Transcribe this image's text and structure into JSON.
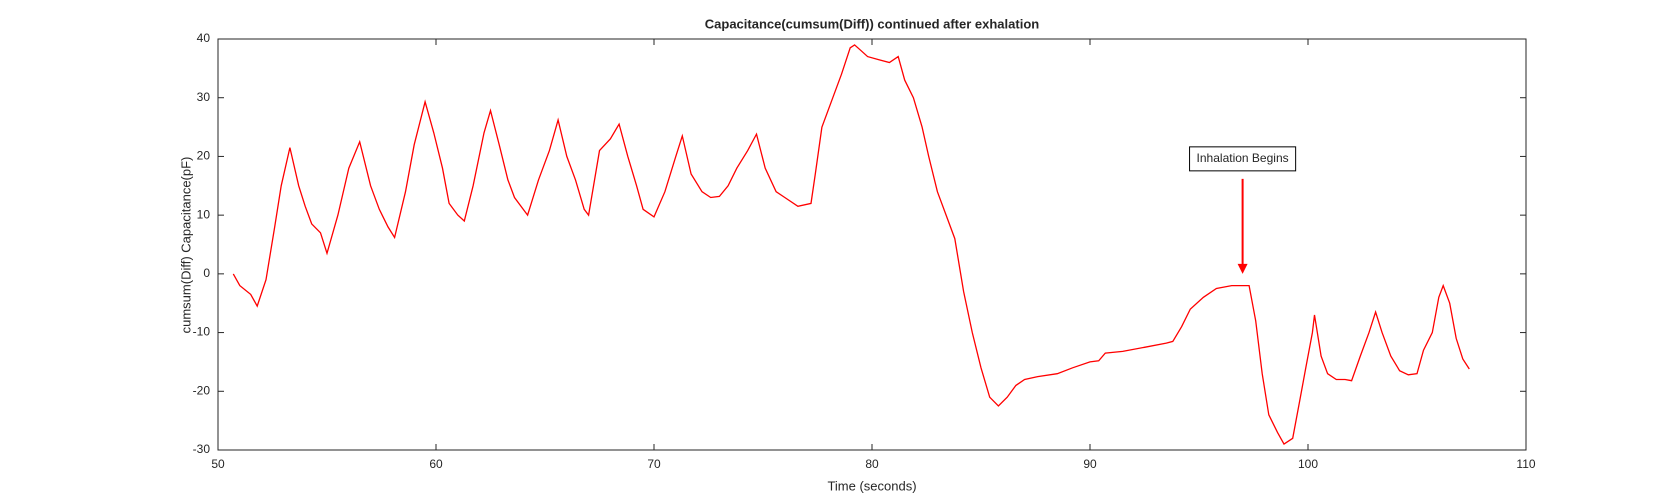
{
  "chart_data": {
    "type": "line",
    "title": "Capacitance(cumsum(Diff)) continued after exhalation",
    "x_label": "Time (seconds)",
    "y_label": "cumsum(Diff) Capacitance(pF)",
    "xlim": [
      50,
      110
    ],
    "xticks": [
      50,
      60,
      70,
      80,
      90,
      100,
      110
    ],
    "ylim": [
      -30,
      40
    ],
    "yticks": [
      -30,
      -20,
      -10,
      0,
      10,
      20,
      30,
      40
    ],
    "grid": false,
    "x": [
      50.7,
      51.0,
      51.5,
      51.8,
      52.2,
      52.6,
      52.9,
      53.3,
      53.7,
      54.0,
      54.3,
      54.7,
      55.0,
      55.5,
      56.0,
      56.5,
      57.0,
      57.4,
      57.8,
      58.1,
      58.6,
      59.0,
      59.5,
      59.9,
      60.3,
      60.6,
      61.0,
      61.3,
      61.7,
      62.2,
      62.5,
      62.9,
      63.3,
      63.6,
      64.0,
      64.2,
      64.7,
      65.2,
      65.6,
      66.0,
      66.4,
      66.8,
      67.0,
      67.5,
      68.0,
      68.4,
      68.8,
      69.2,
      69.5,
      70.0,
      70.5,
      71.0,
      71.3,
      71.7,
      72.2,
      72.6,
      73.0,
      73.4,
      73.8,
      74.3,
      74.7,
      75.1,
      75.6,
      76.0,
      76.6,
      77.2,
      77.4,
      77.7,
      78.2,
      78.6,
      79.0,
      79.2,
      79.5,
      79.8,
      80.3,
      80.8,
      81.2,
      81.5,
      81.9,
      82.3,
      82.6,
      83.0,
      83.4,
      83.8,
      84.2,
      84.6,
      85.0,
      85.4,
      85.8,
      86.2,
      86.6,
      87.0,
      87.6,
      88.5,
      89.2,
      90.0,
      90.4,
      90.7,
      91.5,
      92.5,
      93.5,
      93.8,
      94.2,
      94.6,
      95.2,
      95.8,
      96.5,
      97.3,
      97.6,
      97.9,
      98.2,
      98.6,
      98.9,
      99.3,
      99.6,
      99.9,
      100.2,
      100.3,
      100.6,
      100.9,
      101.3,
      101.7,
      102.0,
      102.4,
      102.8,
      103.1,
      103.4,
      103.8,
      104.2,
      104.6,
      105.0,
      105.3,
      105.7,
      106.0,
      106.2,
      106.5,
      106.8,
      107.1,
      107.4
    ],
    "series": [
      {
        "name": "Capacitance",
        "color": "#ff0000",
        "values": [
          0,
          -2,
          -3.5,
          -5.5,
          -1,
          8,
          15,
          21.5,
          15,
          11.5,
          8.5,
          7,
          3.5,
          10,
          18,
          22.5,
          15,
          11,
          8,
          6.2,
          14,
          22,
          29.3,
          24,
          18,
          12,
          10,
          9,
          15,
          24,
          27.8,
          22,
          16,
          13,
          11,
          10,
          16,
          21,
          26.2,
          20,
          16,
          11,
          10,
          21,
          23,
          25.5,
          20,
          15,
          11,
          9.7,
          14,
          20,
          23.5,
          17,
          14,
          13,
          13.2,
          15,
          18,
          21,
          23.8,
          18,
          14,
          13,
          11.5,
          12,
          17,
          25,
          30,
          34,
          38.5,
          39,
          38,
          37,
          36.5,
          36,
          37,
          33,
          30,
          25,
          20,
          14,
          10,
          6,
          -3,
          -10,
          -16,
          -21,
          -22.5,
          -21,
          -19,
          -18,
          -17.5,
          -17,
          -16,
          -15,
          -14.8,
          -13.5,
          -13.2,
          -12.5,
          -11.8,
          -11.5,
          -9,
          -6,
          -4,
          -2.5,
          -2,
          -2,
          -8,
          -17,
          -24,
          -27,
          -29,
          -28,
          -22,
          -16,
          -10,
          -7,
          -14,
          -17,
          -18,
          -18,
          -18.2,
          -14,
          -10,
          -6.5,
          -10,
          -14,
          -16.5,
          -17.2,
          -17,
          -13,
          -10,
          -4,
          -2,
          -5,
          -11,
          -14.5,
          -16.2
        ]
      }
    ],
    "annotations": [
      {
        "text": "Inhalation Begins",
        "x": 97,
        "y": 0,
        "color": "#ff0000"
      }
    ]
  }
}
